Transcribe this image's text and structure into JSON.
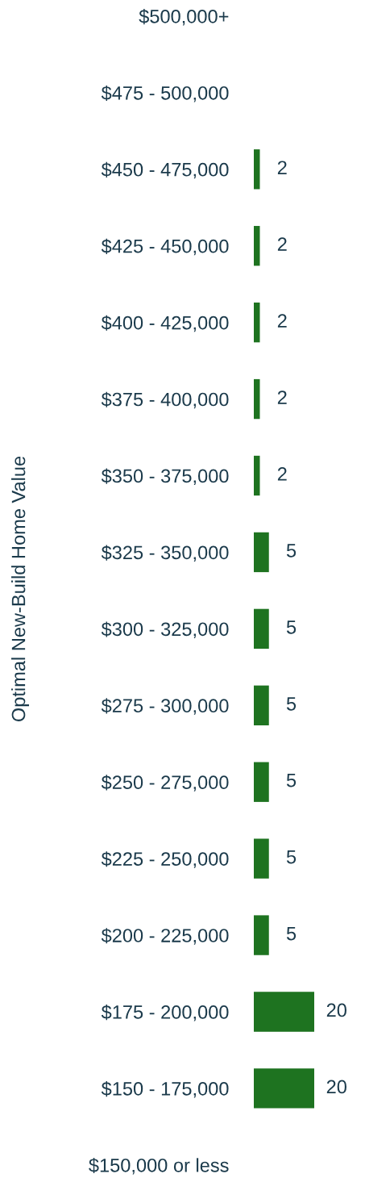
{
  "chart_data": {
    "type": "bar",
    "orientation": "horizontal",
    "ylabel": "Optimal New-Build Home Value",
    "categories": [
      "$500,000+",
      "$475 - 500,000",
      "$450 - 475,000",
      "$425 - 450,000",
      "$400 - 425,000",
      "$375 - 400,000",
      "$350 - 375,000",
      "$325 - 350,000",
      "$300 - 325,000",
      "$275 - 300,000",
      "$250 - 275,000",
      "$225 - 250,000",
      "$200 - 225,000",
      "$175 - 200,000",
      "$150 - 175,000",
      "$150,000 or less"
    ],
    "values": [
      null,
      null,
      2,
      2,
      2,
      2,
      2,
      5,
      5,
      5,
      5,
      5,
      5,
      20,
      20,
      null
    ],
    "color": "#1e7320",
    "data_labels": true,
    "tick_labels": "y"
  }
}
